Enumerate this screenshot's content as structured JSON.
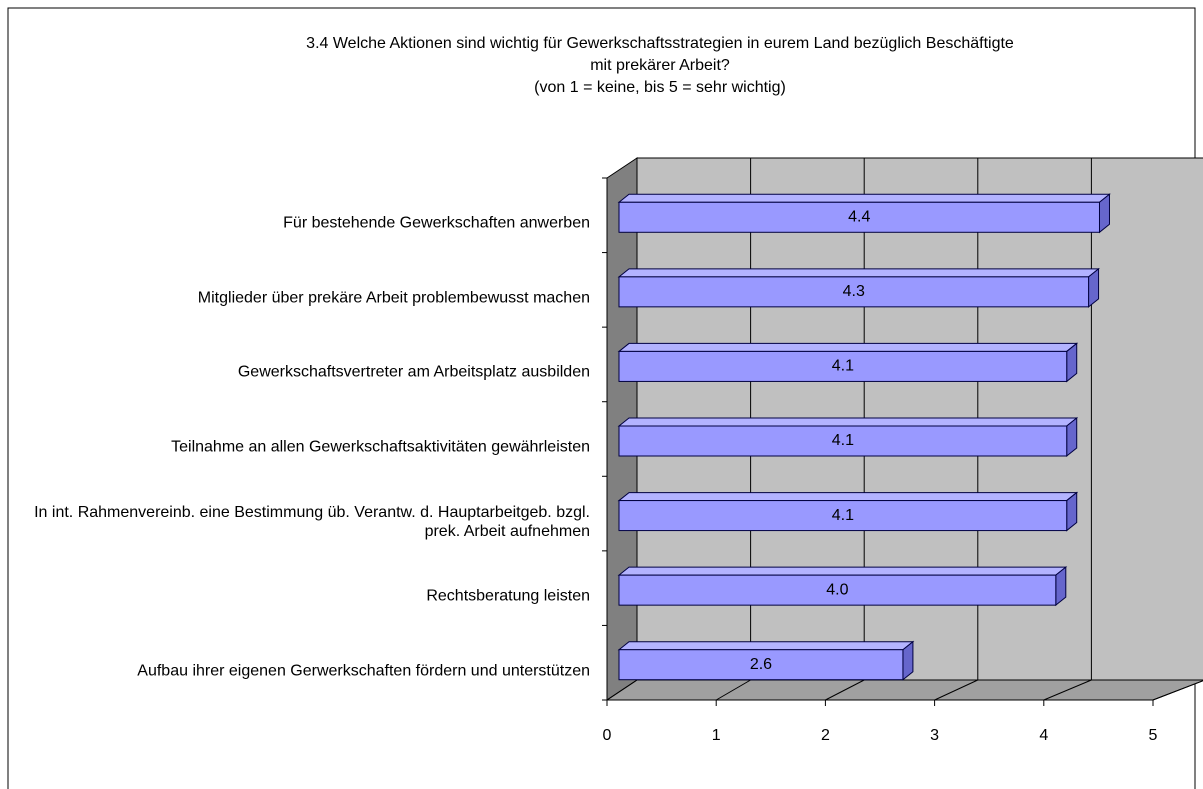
{
  "chart_data": {
    "type": "bar3d_horizontal",
    "title": [
      "3.4 Welche Aktionen sind wichtig für Gewerkschaftsstrategien in eurem Land bezüglich Beschäftigte",
      "mit prekärer Arbeit?"
    ],
    "subtitle": "(von 1 = keine, bis 5 = sehr wichtig)",
    "categories": [
      "Für bestehende Gewerkschaften anwerben",
      "Mitglieder über prekäre Arbeit problembewusst machen",
      "Gewerkschaftsvertreter am Arbeitsplatz ausbilden",
      "Teilnahme an allen Gewerkschaftsaktivitäten gewährleisten",
      "In int. Rahmenvereinb. eine Bestimmung üb. Verantw. d. Hauptarbeitgeb. bzgl. prek. Arbeit aufnehmen",
      "Rechtsberatung leisten",
      "Aufbau ihrer eigenen Gerwerkschaften fördern und unterstützen"
    ],
    "values": [
      4.4,
      4.3,
      4.1,
      4.1,
      4.1,
      4.0,
      2.6
    ],
    "value_labels": [
      "4.4",
      "4.3",
      "4.1",
      "4.1",
      "4.1",
      "4.0",
      "2.6"
    ],
    "color": "#9999ff",
    "xlim": [
      0,
      5
    ],
    "xticks": [
      0,
      1,
      2,
      3,
      4,
      5
    ],
    "grid": true
  }
}
